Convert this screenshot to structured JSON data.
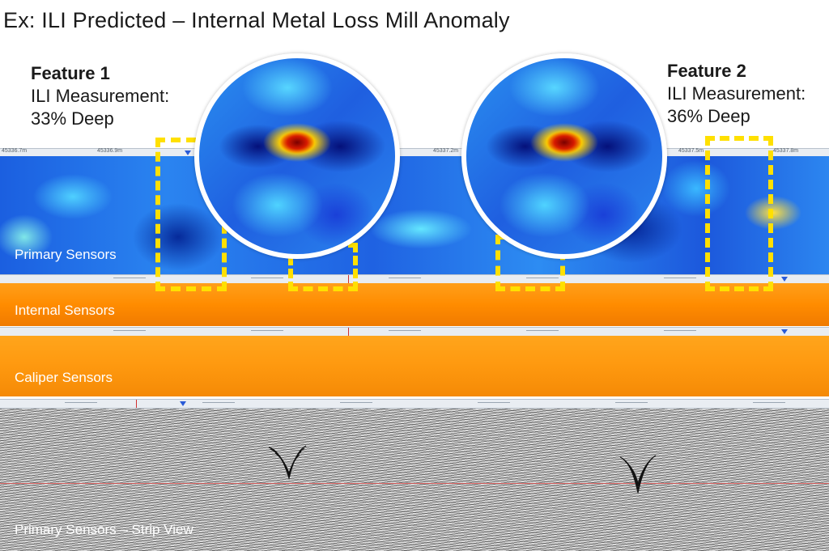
{
  "title": "Ex: ILI Predicted – Internal Metal Loss Mill Anomaly",
  "features": [
    {
      "name": "Feature 1",
      "line1": "ILI Measurement:",
      "line2": "33% Deep"
    },
    {
      "name": "Feature 2",
      "line1": "ILI Measurement:",
      "line2": "36% Deep"
    }
  ],
  "panels": {
    "primary": "Primary Sensors",
    "internal": "Internal Sensors",
    "caliper": "Caliper Sensors",
    "strip": "Primary Sensors – Strip View"
  },
  "scale_labels": [
    "45336.7m",
    "45336.9m",
    "45337.2m",
    "45337.5m",
    "45337.8m"
  ],
  "colors": {
    "highlight": "#ffe000",
    "cold": "#1b5fe0",
    "hot": "#d61a00",
    "orange": "#ff9a10"
  },
  "icons": {
    "cursor": "red-cursor-line",
    "marker": "blue-triangle-marker"
  }
}
